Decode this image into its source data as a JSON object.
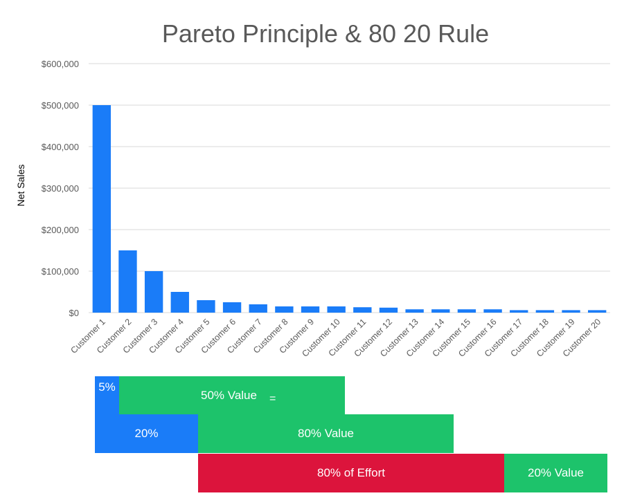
{
  "chart_data": {
    "type": "bar",
    "title": "Pareto Principle & 80 20 Rule",
    "ylabel": "Net Sales",
    "xlabel": "",
    "ylim": [
      0,
      600000
    ],
    "yticks": [
      0,
      100000,
      200000,
      300000,
      400000,
      500000,
      600000
    ],
    "ytick_labels": [
      "$0",
      "$100,000",
      "$200,000",
      "$300,000",
      "$400,000",
      "$500,000",
      "$600,000"
    ],
    "grid": true,
    "bar_color": "#1a7cf8",
    "categories": [
      "Customer 1",
      "Customer 2",
      "Customer 3",
      "Customer 4",
      "Customer 5",
      "Customer 6",
      "Customer 7",
      "Customer 8",
      "Customer 9",
      "Customer 10",
      "Customer 11",
      "Customer 12",
      "Customer 13",
      "Customer 14",
      "Customer 15",
      "Customer 16",
      "Customer 17",
      "Customer 18",
      "Customer 19",
      "Customer 20"
    ],
    "values": [
      500000,
      150000,
      100000,
      50000,
      30000,
      25000,
      20000,
      15000,
      15000,
      15000,
      13000,
      12000,
      8000,
      8000,
      8000,
      8000,
      6000,
      6000,
      6000,
      6000
    ]
  },
  "annotations": {
    "five_pct": "5%",
    "fifty_value": "50% Value",
    "equals": "=",
    "twenty_pct": "20%",
    "eighty_value": "80% Value",
    "eighty_effort": "80% of Effort",
    "twenty_value": "20% Value"
  },
  "colors": {
    "blue": "#1a7cf8",
    "green": "#1dc36b",
    "red": "#dc143c"
  }
}
